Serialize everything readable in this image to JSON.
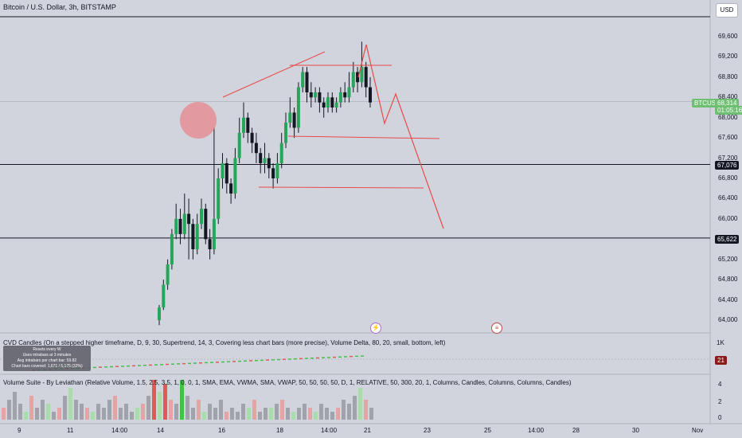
{
  "header": {
    "title": "Bitcoin / U.S. Dollar, 3h, BITSTAMP",
    "currency": "USD"
  },
  "price_axis": {
    "labels": [
      "69,600",
      "69,200",
      "68,800",
      "68,400",
      "68,000",
      "67,600",
      "67,200",
      "66,800",
      "66,400",
      "66,000",
      "65,600",
      "65,200",
      "64,800",
      "64,400",
      "64,000"
    ],
    "values": [
      69600,
      69200,
      68800,
      68400,
      68000,
      67600,
      67200,
      66800,
      66400,
      66000,
      65600,
      65200,
      64800,
      64400,
      64000
    ],
    "top_hidden": "70,000"
  },
  "tags": {
    "symbol": "BTCUSD",
    "last_price": "68,314",
    "countdown": "01:05:16",
    "level_a": "67,076",
    "level_b": "65,622",
    "delta_value": "21"
  },
  "horizontal_levels": [
    70000,
    67076,
    65622
  ],
  "indicator_cvd": {
    "label": "CVD Candles (On a stepped higher timeframe, D, 9, 30, Supertrend, 14, 3, Covering less chart bars (more precise), Volume Delta, 80, 20, small, bottom, left)",
    "axis": "1K",
    "info": [
      "Resets every W",
      "Uses intrabars at 3 minutes",
      "Avg intrabars per chart bar: 59.82",
      "Chart bars covered: 1,671 / 5,175 (32%)"
    ]
  },
  "indicator_volume": {
    "label": "Volume Suite - By Leviathan (Relative Volume, 1.5, 2.5, 3.5, 1, 0, 0, 1, SMA, EMA, VWMA, SMA, VWAP, 50, 50, 50, 50, D, 1, RELATIVE, 50, 300, 20, 1, Columns, Candles, Columns, Columns, Candles)",
    "axis": [
      "4",
      "2",
      "0"
    ]
  },
  "time_axis": [
    "9",
    "11",
    "14:00",
    "14",
    "16",
    "18",
    "14:00",
    "21",
    "23",
    "25",
    "14:00",
    "28",
    "30",
    "Nov"
  ],
  "colors": {
    "up": "#26a65b",
    "down": "#131722",
    "drawing": "#e84a4a",
    "volume_up": "#6fd36f",
    "volume_down": "#e05a5a",
    "volume_neutral": "#a0a3ab",
    "circle": "#e7868c"
  }
}
